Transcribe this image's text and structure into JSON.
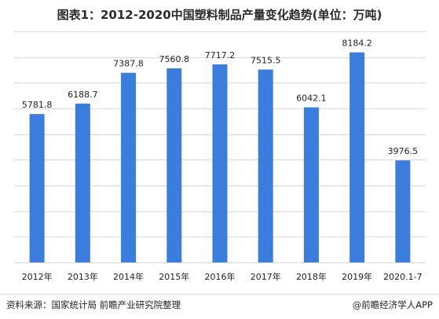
{
  "title": "图表1：2012-2020中国塑料制品产量变化趋势(单位：万吨)",
  "source": "资料来源：国家统计局 前瞻产业研究院整理",
  "credit": "@前瞻经济学人APP",
  "chart_data": {
    "type": "bar",
    "title": "图表1：2012-2020中国塑料制品产量变化趋势(单位：万吨)",
    "categories": [
      "2012年",
      "2013年",
      "2014年",
      "2015年",
      "2016年",
      "2017年",
      "2018年",
      "2019年",
      "2020.1-7"
    ],
    "values": [
      5781.8,
      6188.7,
      7387.8,
      7560.8,
      7717.2,
      7515.5,
      6042.1,
      8184.2,
      3976.5
    ],
    "value_labels": [
      "5781.8",
      "6188.7",
      "7387.8",
      "7560.8",
      "7717.2",
      "7515.5",
      "6042.1",
      "8184.2",
      "3976.5"
    ],
    "ylim": [
      0,
      9000
    ],
    "ytick_step": 1000,
    "grid": true,
    "bar_color": "#3b7ddd",
    "grid_color": "#d9d9d9"
  }
}
